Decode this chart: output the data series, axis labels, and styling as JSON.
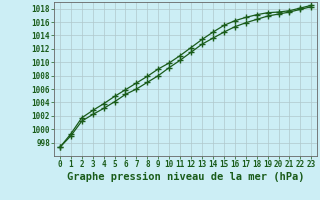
{
  "xlabel": "Graphe pression niveau de la mer (hPa)",
  "ylim": [
    996,
    1019
  ],
  "xlim": [
    -0.5,
    23.5
  ],
  "yticks": [
    998,
    1000,
    1002,
    1004,
    1006,
    1008,
    1010,
    1012,
    1014,
    1016,
    1018
  ],
  "xticks": [
    0,
    1,
    2,
    3,
    4,
    5,
    6,
    7,
    8,
    9,
    10,
    11,
    12,
    13,
    14,
    15,
    16,
    17,
    18,
    19,
    20,
    21,
    22,
    23
  ],
  "line1_x": [
    0,
    1,
    2,
    3,
    4,
    5,
    6,
    7,
    8,
    9,
    10,
    11,
    12,
    13,
    14,
    15,
    16,
    17,
    18,
    19,
    20,
    21,
    22,
    23
  ],
  "line1_y": [
    997.3,
    999.0,
    1001.2,
    1002.2,
    1003.1,
    1004.1,
    1005.2,
    1006.0,
    1007.0,
    1008.0,
    1009.2,
    1010.3,
    1011.5,
    1012.7,
    1013.6,
    1014.5,
    1015.3,
    1015.9,
    1016.4,
    1016.9,
    1017.2,
    1017.5,
    1017.9,
    1018.3
  ],
  "line2_x": [
    0,
    1,
    2,
    3,
    4,
    5,
    6,
    7,
    8,
    9,
    10,
    11,
    12,
    13,
    14,
    15,
    16,
    17,
    18,
    19,
    20,
    21,
    22,
    23
  ],
  "line2_y": [
    997.3,
    999.3,
    1001.7,
    1002.8,
    1003.8,
    1004.9,
    1005.9,
    1006.9,
    1007.9,
    1009.0,
    1009.9,
    1011.0,
    1012.2,
    1013.4,
    1014.5,
    1015.5,
    1016.2,
    1016.7,
    1017.1,
    1017.4,
    1017.5,
    1017.7,
    1018.1,
    1018.5
  ],
  "line_color": "#1a5c1a",
  "bg_color": "#cceef5",
  "grid_color": "#b0c8cc",
  "text_color": "#1a5c1a",
  "tick_fontsize": 5.5,
  "label_fontsize": 7.5
}
